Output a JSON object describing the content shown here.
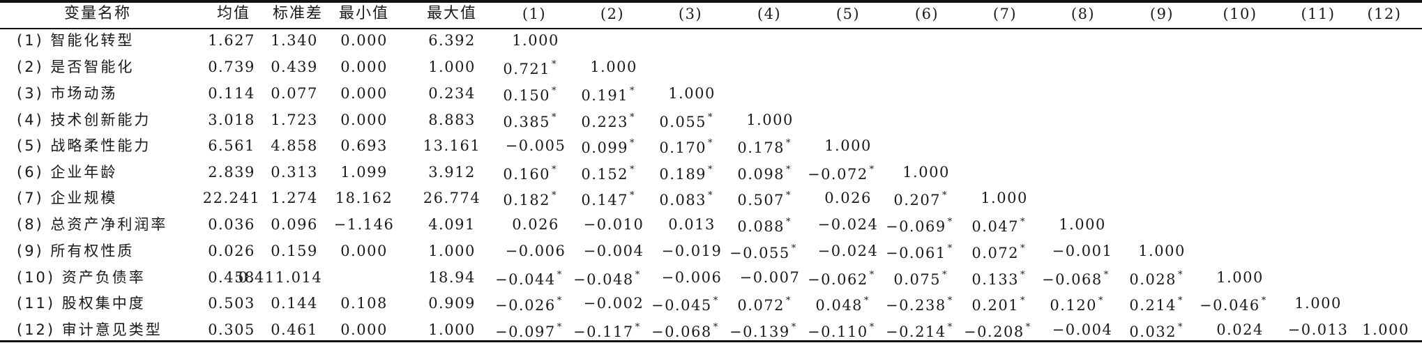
{
  "table": {
    "headers": [
      "变量名称",
      "均值",
      "标准差",
      "最小值",
      "最大值",
      "(1)",
      "(2)",
      "(3)",
      "(4)",
      "(5)",
      "(6)",
      "(7)",
      "(8)",
      "(9)",
      "(10)",
      "(11)",
      "(12)"
    ],
    "rows": [
      {
        "name": "(1) 智能化转型",
        "stats": [
          "1.627",
          "1.340",
          "0.000",
          "6.392"
        ],
        "corr": [
          "1.000"
        ]
      },
      {
        "name": "(2) 是否智能化",
        "stats": [
          "0.739",
          "0.439",
          "0.000",
          "1.000"
        ],
        "corr": [
          "0.721*",
          "1.000"
        ]
      },
      {
        "name": "(3) 市场动荡",
        "stats": [
          "0.114",
          "0.077",
          "0.000",
          "0.234"
        ],
        "corr": [
          "0.150*",
          "0.191*",
          "1.000"
        ]
      },
      {
        "name": "(4) 技术创新能力",
        "stats": [
          "3.018",
          "1.723",
          "0.000",
          "8.883"
        ],
        "corr": [
          "0.385*",
          "0.223*",
          "0.055*",
          "1.000"
        ]
      },
      {
        "name": "(5) 战略柔性能力",
        "stats": [
          "6.561",
          "4.858",
          "0.693",
          "13.161"
        ],
        "corr": [
          "−0.005",
          "0.099*",
          "0.170*",
          "0.178*",
          "1.000"
        ]
      },
      {
        "name": "(6) 企业年龄",
        "stats": [
          "2.839",
          "0.313",
          "1.099",
          "3.912"
        ],
        "corr": [
          "0.160*",
          "0.152*",
          "0.189*",
          "0.098*",
          "−0.072*",
          "1.000"
        ]
      },
      {
        "name": "(7) 企业规模",
        "stats": [
          "22.241",
          "1.274",
          "18.162",
          "26.774"
        ],
        "corr": [
          "0.182*",
          "0.147*",
          "0.083*",
          "0.507*",
          "0.026",
          "0.207*",
          "1.000"
        ]
      },
      {
        "name": "(8) 总资产净利润率",
        "stats": [
          "0.036",
          "0.096",
          "−1.146",
          "4.091"
        ],
        "corr": [
          "0.026",
          "−0.010",
          "0.013",
          "0.088*",
          "−0.024",
          "−0.069*",
          "0.047*",
          "1.000"
        ]
      },
      {
        "name": "(9) 所有权性质",
        "stats": [
          "0.026",
          "0.159",
          "0.000",
          "1.000"
        ],
        "corr": [
          "−0.006",
          "−0.004",
          "−0.019",
          "−0.055*",
          "−0.024",
          "−0.061*",
          "0.072*",
          "−0.001",
          "1.000"
        ]
      },
      {
        "name": "(10) 资产负债率",
        "stats": [
          "0.458",
          "0.411.014",
          "",
          "18.94"
        ],
        "corr": [
          "−0.044*",
          "−0.048*",
          "−0.006",
          "−0.007",
          "−0.062*",
          "0.075*",
          "0.133*",
          "−0.068*",
          "0.028*",
          "1.000"
        ]
      },
      {
        "name": "(11) 股权集中度",
        "stats": [
          "0.503",
          "0.144",
          "0.108",
          "0.909"
        ],
        "corr": [
          "−0.026*",
          "−0.002",
          "−0.045*",
          "0.072*",
          "0.048*",
          "−0.238*",
          "0.201*",
          "0.120*",
          "0.214*",
          "−0.046*",
          "1.000"
        ]
      },
      {
        "name": "(12) 审计意见类型",
        "stats": [
          "0.305",
          "0.461",
          "0.000",
          "1.000"
        ],
        "corr": [
          "−0.097*",
          "−0.117*",
          "−0.068*",
          "−0.139*",
          "−0.110*",
          "−0.214*",
          "−0.208*",
          "−0.004",
          "0.032*",
          "0.024",
          "−0.013",
          "1.000"
        ]
      }
    ]
  }
}
